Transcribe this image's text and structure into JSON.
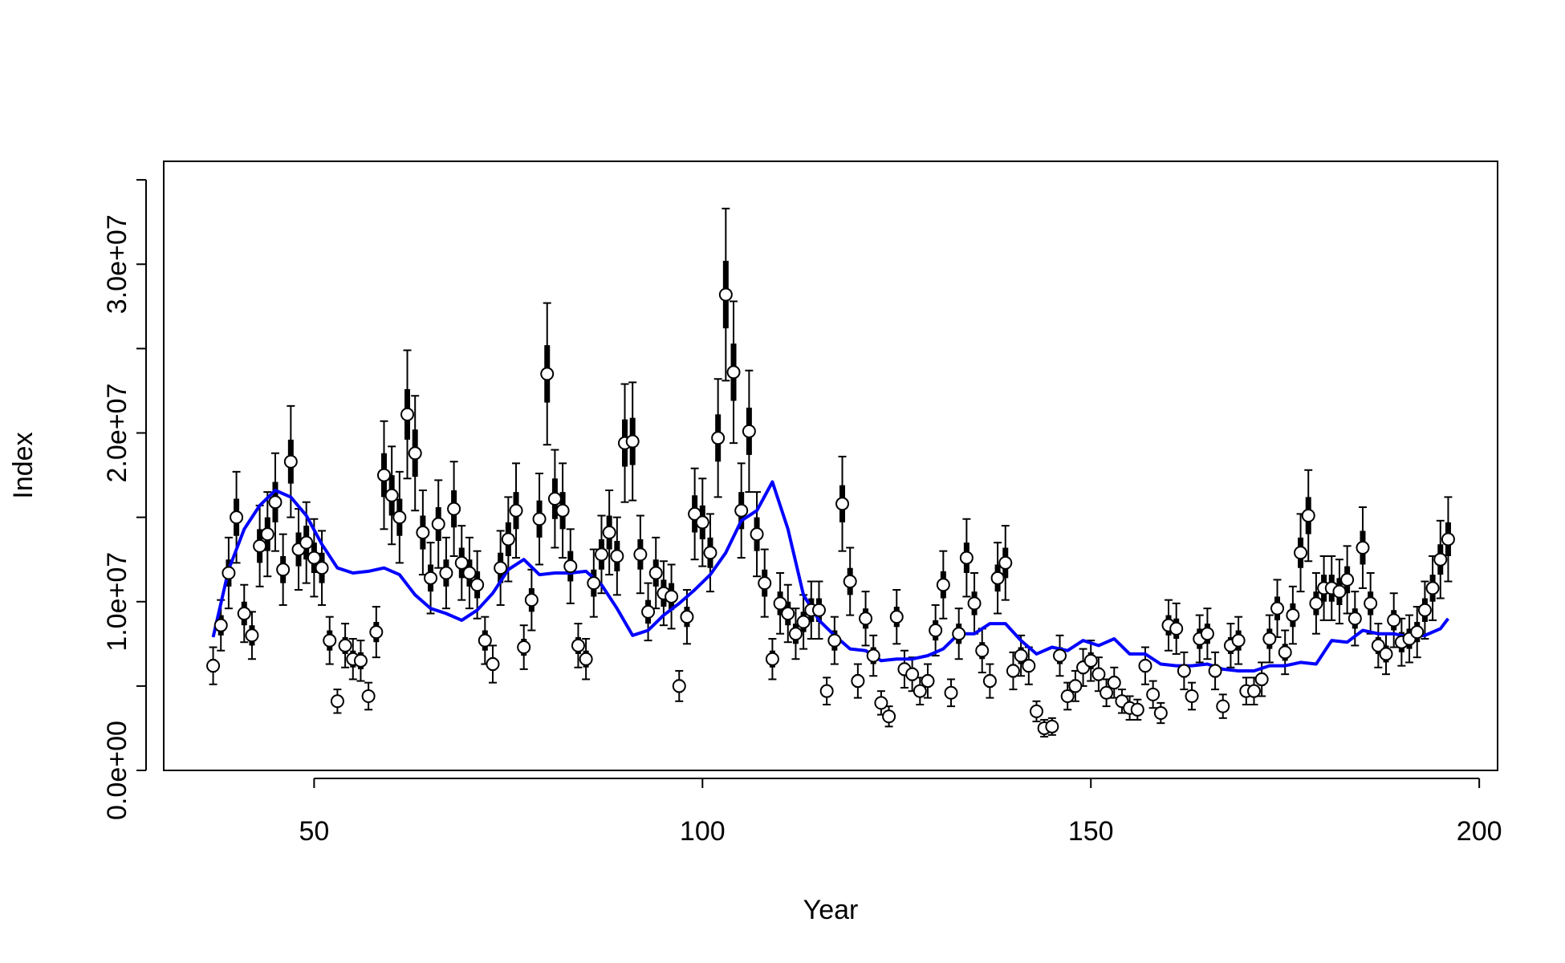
{
  "chart_data": {
    "type": "scatter",
    "xlabel": "Year",
    "ylabel": "Index",
    "color": "#000000",
    "x": [
      37,
      38,
      39,
      40,
      41,
      42,
      43,
      44,
      45,
      46,
      47,
      48,
      49,
      50,
      51,
      52,
      53,
      54,
      55,
      56,
      57,
      58,
      59,
      60,
      61,
      62,
      63,
      64,
      65,
      66,
      67,
      68,
      69,
      70,
      71,
      72,
      73,
      74,
      75,
      76,
      77,
      78,
      79,
      80,
      81,
      82,
      83,
      84,
      85,
      86,
      87,
      88,
      89,
      90,
      91,
      92,
      93,
      94,
      95,
      96,
      97,
      98,
      99,
      100,
      101,
      102,
      103,
      104,
      105,
      106,
      107,
      108,
      109,
      110,
      111,
      112,
      113,
      114,
      115,
      116,
      117,
      118,
      119,
      120,
      121,
      122,
      123,
      124,
      125,
      126,
      127,
      128,
      129,
      130,
      131,
      132,
      133,
      134,
      135,
      136,
      137,
      138,
      139,
      140,
      141,
      142,
      143,
      144,
      145,
      146,
      147,
      148,
      149,
      150,
      151,
      152,
      153,
      154,
      155,
      156,
      157,
      158,
      159,
      160,
      161,
      162,
      163,
      164,
      165,
      166,
      167,
      168,
      169,
      170,
      171,
      172,
      173,
      174,
      175,
      176,
      177,
      178,
      179,
      180,
      181,
      182,
      183,
      184,
      185,
      186,
      187,
      188,
      189,
      190,
      191,
      192,
      193,
      194,
      195,
      196
    ],
    "values": [
      6200000.0,
      8600000.0,
      11700000.0,
      15000000.0,
      9300000.0,
      8000000.0,
      13300000.0,
      14000000.0,
      15900000.0,
      11900000.0,
      18300000.0,
      13100000.0,
      13500000.0,
      12600000.0,
      12000000.0,
      7700000.0,
      4100000.0,
      7400000.0,
      6600000.0,
      6500000.0,
      4400000.0,
      8200000.0,
      17500000.0,
      16300000.0,
      15000000.0,
      21100000.0,
      18800000.0,
      14100000.0,
      11400000.0,
      14600000.0,
      11700000.0,
      15500000.0,
      12300000.0,
      11700000.0,
      11000000.0,
      7700000.0,
      6300000.0,
      12000000.0,
      13700000.0,
      15400000.0,
      7300000.0,
      10100000.0,
      14900000.0,
      23500000.0,
      16100000.0,
      15400000.0,
      12100000.0,
      7400000.0,
      6600000.0,
      11100000.0,
      12800000.0,
      14100000.0,
      12700000.0,
      19400000.0,
      19500000.0,
      12800000.0,
      9400000.0,
      11700000.0,
      10500000.0,
      10300000.0,
      5000000.0,
      9100000.0,
      15200000.0,
      14700000.0,
      12900000.0,
      19700000.0,
      28200000.0,
      23600000.0,
      15400000.0,
      20100000.0,
      14000000.0,
      11100000.0,
      6600000.0,
      9900000.0,
      9300000.0,
      8100000.0,
      8800000.0,
      9500000.0,
      9500000.0,
      4700000.0,
      7700000.0,
      15800000.0,
      11200000.0,
      5300000.0,
      9000000.0,
      6800000.0,
      4000000.0,
      3200000.0,
      9100000.0,
      6000000.0,
      5700000.0,
      4700000.0,
      5300000.0,
      8300000.0,
      11000000.0,
      4600000.0,
      8100000.0,
      12600000.0,
      9900000.0,
      7100000.0,
      5300000.0,
      11400000.0,
      12300000.0,
      5900000.0,
      6800000.0,
      6200000.0,
      3500000.0,
      2500000.0,
      2600000.0,
      6800000.0,
      4400000.0,
      5000000.0,
      6100000.0,
      6500000.0,
      5700000.0,
      4600000.0,
      5200000.0,
      4100000.0,
      3700000.0,
      3600000.0,
      6200000.0,
      4500000.0,
      3400000.0,
      8600000.0,
      8400000.0,
      5900000.0,
      4400000.0,
      7800000.0,
      8100000.0,
      5900000.0,
      3800000.0,
      7400000.0,
      7700000.0,
      4700000.0,
      4700000.0,
      5400000.0,
      7800000.0,
      9600000.0,
      7000000.0,
      9200000.0,
      12900000.0,
      15100000.0,
      9900000.0,
      10800000.0,
      10800000.0,
      10600000.0,
      11300000.0,
      9000000.0,
      13200000.0,
      9900000.0,
      7400000.0,
      6900000.0,
      8900000.0,
      7600000.0,
      7800000.0,
      8200000.0,
      9500000.0,
      10800000.0,
      12500000.0,
      13700000.0
    ],
    "errors": [
      1100000.0,
      1500000.0,
      2100000.0,
      2700000.0,
      1700000.0,
      1400000.0,
      2400000.0,
      2500000.0,
      2900000.0,
      2100000.0,
      3300000.0,
      2400000.0,
      2400000.0,
      2300000.0,
      2200000.0,
      1400000.0,
      700000.0,
      1300000.0,
      1200000.0,
      1200000.0,
      800000.0,
      1500000.0,
      3200000.0,
      2900000.0,
      2700000.0,
      3800000.0,
      3400000.0,
      2500000.0,
      2100000.0,
      2600000.0,
      2100000.0,
      2800000.0,
      2200000.0,
      2100000.0,
      2000000.0,
      1400000.0,
      1100000.0,
      2200000.0,
      2500000.0,
      2800000.0,
      1300000.0,
      1800000.0,
      2700000.0,
      4200000.0,
      2900000.0,
      2800000.0,
      2200000.0,
      1300000.0,
      1200000.0,
      2000000.0,
      2300000.0,
      2500000.0,
      2300000.0,
      3500000.0,
      3500000.0,
      2300000.0,
      1700000.0,
      2100000.0,
      1900000.0,
      1900000.0,
      900000.0,
      1600000.0,
      2700000.0,
      2600000.0,
      2300000.0,
      3500000.0,
      5100000.0,
      4200000.0,
      2800000.0,
      3600000.0,
      2500000.0,
      2000000.0,
      1200000.0,
      1800000.0,
      1700000.0,
      1500000.0,
      1600000.0,
      1700000.0,
      1700000.0,
      800000.0,
      1400000.0,
      2800000.0,
      2000000.0,
      1000000.0,
      1600000.0,
      1200000.0,
      700000.0,
      600000.0,
      1600000.0,
      1100000.0,
      1000000.0,
      800000.0,
      1000000.0,
      1500000.0,
      2000000.0,
      800000.0,
      1500000.0,
      2300000.0,
      1800000.0,
      1300000.0,
      1000000.0,
      2100000.0,
      2200000.0,
      1100000.0,
      1200000.0,
      1100000.0,
      600000.0,
      500000.0,
      500000.0,
      1200000.0,
      800000.0,
      900000.0,
      1100000.0,
      1200000.0,
      1000000.0,
      800000.0,
      900000.0,
      700000.0,
      700000.0,
      600000.0,
      1100000.0,
      800000.0,
      600000.0,
      1500000.0,
      1500000.0,
      1100000.0,
      800000.0,
      1400000.0,
      1500000.0,
      1100000.0,
      700000.0,
      1300000.0,
      1400000.0,
      800000.0,
      800000.0,
      1000000.0,
      1400000.0,
      1700000.0,
      1300000.0,
      1700000.0,
      2300000.0,
      2700000.0,
      1800000.0,
      1900000.0,
      1900000.0,
      1900000.0,
      2000000.0,
      1600000.0,
      2400000.0,
      1800000.0,
      1300000.0,
      1200000.0,
      1600000.0,
      1400000.0,
      1400000.0,
      1500000.0,
      1700000.0,
      1900000.0,
      2300000.0,
      2500000.0
    ],
    "errors_inner": [
      400000.0,
      600000.0,
      800000.0,
      1100000.0,
      700000.0,
      600000.0,
      1000000.0,
      1000000.0,
      1200000.0,
      800000.0,
      1300000.0,
      1000000.0,
      1000000.0,
      900000.0,
      900000.0,
      600000.0,
      300000.0,
      500000.0,
      500000.0,
      500000.0,
      300000.0,
      600000.0,
      1300000.0,
      1200000.0,
      1100000.0,
      1500000.0,
      1400000.0,
      1000000.0,
      800000.0,
      1000000.0,
      800000.0,
      1100000.0,
      900000.0,
      800000.0,
      800000.0,
      600000.0,
      400000.0,
      900000.0,
      1000000.0,
      1100000.0,
      500000.0,
      700000.0,
      1100000.0,
      1700000.0,
      1200000.0,
      1100000.0,
      900000.0,
      500000.0,
      500000.0,
      800000.0,
      900000.0,
      1000000.0,
      900000.0,
      1400000.0,
      1400000.0,
      900000.0,
      700000.0,
      800000.0,
      800000.0,
      800000.0,
      400000.0,
      600000.0,
      1100000.0,
      1000000.0,
      900000.0,
      1400000.0,
      2000000.0,
      1700000.0,
      1100000.0,
      1400000.0,
      1000000.0,
      800000.0,
      500000.0,
      700000.0,
      700000.0,
      600000.0,
      600000.0,
      700000.0,
      700000.0,
      300000.0,
      600000.0,
      1100000.0,
      800000.0,
      400000.0,
      600000.0,
      500000.0,
      300000.0,
      200000.0,
      600000.0,
      400000.0,
      400000.0,
      300000.0,
      400000.0,
      600000.0,
      800000.0,
      300000.0,
      600000.0,
      900000.0,
      700000.0,
      500000.0,
      400000.0,
      800000.0,
      900000.0,
      400000.0,
      500000.0,
      400000.0,
      200000.0,
      200000.0,
      200000.0,
      500000.0,
      300000.0,
      400000.0,
      400000.0,
      500000.0,
      400000.0,
      300000.0,
      400000.0,
      300000.0,
      300000.0,
      200000.0,
      400000.0,
      300000.0,
      200000.0,
      600000.0,
      600000.0,
      400000.0,
      300000.0,
      600000.0,
      600000.0,
      400000.0,
      300000.0,
      500000.0,
      600000.0,
      300000.0,
      300000.0,
      400000.0,
      600000.0,
      700000.0,
      500000.0,
      700000.0,
      900000.0,
      1100000.0,
      700000.0,
      800000.0,
      800000.0,
      800000.0,
      800000.0,
      600000.0,
      1000000.0,
      700000.0,
      500000.0,
      500000.0,
      600000.0,
      600000.0,
      600000.0,
      600000.0,
      700000.0,
      800000.0,
      900000.0,
      1000000.0
    ],
    "trend": {
      "color": "#0000ff",
      "x": [
        37,
        39,
        41,
        43,
        45,
        47,
        49,
        51,
        53,
        55,
        57,
        59,
        61,
        63,
        65,
        67,
        69,
        71,
        73,
        75,
        77,
        79,
        81,
        83,
        85,
        87,
        89,
        91,
        93,
        95,
        97,
        99,
        101,
        103,
        105,
        107,
        109,
        111,
        113,
        115,
        117,
        119,
        121,
        123,
        125,
        127,
        129,
        131,
        133,
        135,
        137,
        139,
        141,
        143,
        145,
        147,
        149,
        151,
        153,
        155,
        157,
        159,
        161,
        163,
        165,
        167,
        169,
        171,
        173,
        175,
        177,
        179,
        181,
        183,
        185,
        187,
        189,
        191,
        193,
        195,
        196
      ],
      "values": [
        7900000.0,
        11900000.0,
        14300000.0,
        15700000.0,
        16600000.0,
        16200000.0,
        15100000.0,
        13400000.0,
        12000000.0,
        11700000.0,
        11800000.0,
        12000000.0,
        11600000.0,
        10400000.0,
        9600000.0,
        9300000.0,
        8900000.0,
        9500000.0,
        10500000.0,
        11900000.0,
        12500000.0,
        11600000.0,
        11700000.0,
        11700000.0,
        11800000.0,
        11000000.0,
        9600000.0,
        8000000.0,
        8300000.0,
        9200000.0,
        9900000.0,
        10700000.0,
        11600000.0,
        12900000.0,
        14800000.0,
        15400000.0,
        17100000.0,
        14300000.0,
        10400000.0,
        8900000.0,
        8000000.0,
        7200000.0,
        7100000.0,
        6500000.0,
        6600000.0,
        6600000.0,
        6800000.0,
        7200000.0,
        8100000.0,
        8100000.0,
        8700000.0,
        8700000.0,
        7700000.0,
        6900000.0,
        7300000.0,
        7100000.0,
        7700000.0,
        7400000.0,
        7800000.0,
        6900000.0,
        6900000.0,
        6300000.0,
        6200000.0,
        6200000.0,
        6300000.0,
        6000000.0,
        5900000.0,
        5900000.0,
        6200000.0,
        6200000.0,
        6400000.0,
        6300000.0,
        7700000.0,
        7600000.0,
        8300000.0,
        8100000.0,
        8100000.0,
        7900000.0,
        8000000.0,
        8400000.0,
        9000000.0
      ]
    },
    "xlim": [
      30.64,
      202.36
    ],
    "ylim": [
      0,
      36100000
    ],
    "xticks": [
      50,
      100,
      150,
      200
    ],
    "yticks": [
      {
        "value": 0,
        "label": "0.0e+00"
      },
      {
        "value": 5000000,
        "label": null
      },
      {
        "value": 10000000,
        "label": "1.0e+07"
      },
      {
        "value": 15000000,
        "label": null
      },
      {
        "value": 20000000,
        "label": "2.0e+07"
      },
      {
        "value": 25000000,
        "label": null
      },
      {
        "value": 30000000,
        "label": "3.0e+07"
      },
      {
        "value": 35000000,
        "label": null
      }
    ]
  }
}
